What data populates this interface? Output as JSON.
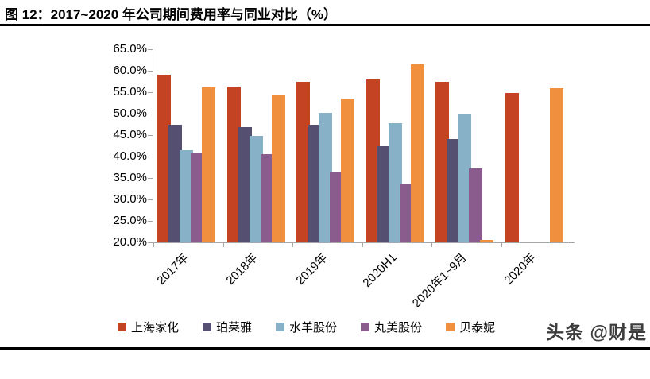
{
  "title": "图 12：2017~2020 年公司期间费用率与同业对比（%）",
  "watermark": "头条 @财是",
  "chart_data": {
    "type": "bar",
    "title": "2017~2020 年公司期间费用率与同业对比（%）",
    "categories": [
      "2017年",
      "2018年",
      "2019年",
      "2020H1",
      "2020年1~9月",
      "2020年"
    ],
    "series": [
      {
        "name": "上海家化",
        "color": "#C44322",
        "values": [
          59.0,
          56.3,
          57.5,
          58.0,
          57.5,
          54.9
        ]
      },
      {
        "name": "珀莱雅",
        "color": "#555071",
        "values": [
          47.5,
          46.9,
          47.4,
          42.4,
          44.0,
          null
        ]
      },
      {
        "name": "水羊股份",
        "color": "#87B1C6",
        "values": [
          41.5,
          44.8,
          50.2,
          47.8,
          49.8,
          null
        ]
      },
      {
        "name": "丸美股份",
        "color": "#8A5C8D",
        "values": [
          41.0,
          40.5,
          36.5,
          33.5,
          37.3,
          null
        ]
      },
      {
        "name": "贝泰妮",
        "color": "#F0903E",
        "values": [
          56.1,
          54.3,
          53.5,
          61.5,
          20.5,
          55.9
        ]
      }
    ],
    "ylim": [
      20,
      65
    ],
    "ytick_step": 5,
    "ytick_labels": [
      "65.0%",
      "60.0%",
      "55.0%",
      "50.0%",
      "45.0%",
      "40.0%",
      "35.0%",
      "30.0%",
      "25.0%",
      "20.0%"
    ],
    "xlabel": "",
    "ylabel": "",
    "grid": false,
    "legend_position": "bottom",
    "axis_color": "#a6a6a6"
  }
}
